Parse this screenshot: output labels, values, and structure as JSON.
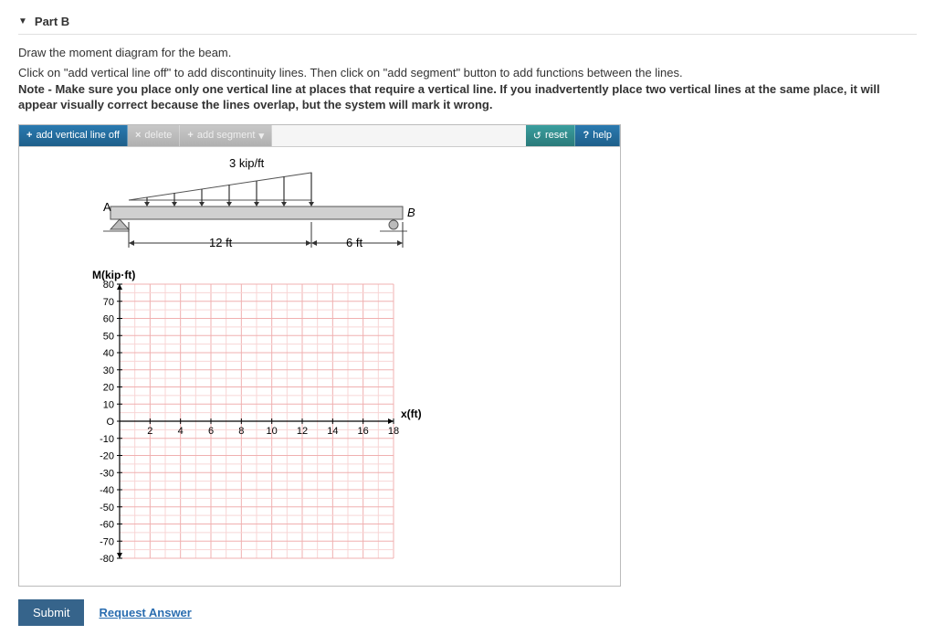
{
  "header": {
    "title": "Part B"
  },
  "instructions": {
    "line1": "Draw the moment diagram for the beam.",
    "line2a": "Click on \"add vertical line off\" to add discontinuity lines. Then click on \"add segment\" button to add functions between the lines.",
    "line2b": "Note - Make sure you place only one vertical line at places that require a vertical line. If you inadvertently place two vertical lines at the same place, it will appear visually correct because the lines overlap, but the system will mark it wrong."
  },
  "toolbar": {
    "add_vline": "add vertical line off",
    "delete": "delete",
    "add_segment": "add segment",
    "reset": "reset",
    "help": "help"
  },
  "beam": {
    "load_label": "3 kip/ft",
    "pointA": "A",
    "pointB": "B",
    "dim1": "12 ft",
    "dim2": "6 ft"
  },
  "chart": {
    "y_title": "M(kip·ft)",
    "x_title": "x(ft)",
    "x_ticks": [
      "2",
      "4",
      "6",
      "8",
      "10",
      "12",
      "14",
      "16",
      "18"
    ],
    "y_ticks_pos": [
      "80",
      "70",
      "60",
      "50",
      "40",
      "30",
      "20",
      "10"
    ],
    "y_origin": "O",
    "y_ticks_neg": [
      "-10",
      "-20",
      "-30",
      "-40",
      "-50",
      "-60",
      "-70",
      "-80"
    ],
    "colors": {
      "grid": "#f0b0b0",
      "minor": "#f8d6d6",
      "axis": "#000000",
      "bg": "#ffffff"
    },
    "xlim": [
      0,
      18
    ],
    "ylim": [
      -80,
      80
    ],
    "x_major": 2,
    "y_major": 10
  },
  "footer": {
    "submit": "Submit",
    "request": "Request Answer"
  }
}
